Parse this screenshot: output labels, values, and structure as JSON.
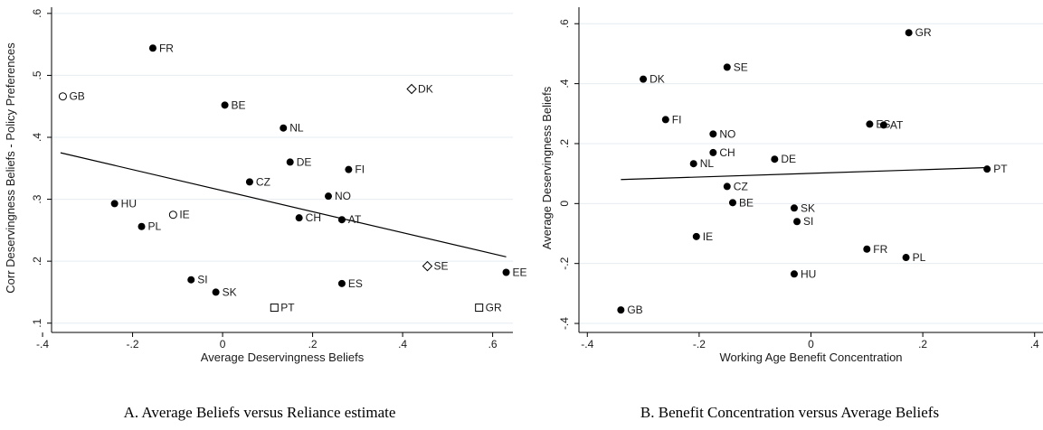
{
  "chart_data": [
    {
      "type": "scatter",
      "xlabel": "Average Deservingness Beliefs",
      "ylabel": "Corr Deservingness Beliefs - Policy Preferences",
      "caption": "A. Average Beliefs versus Reliance estimate",
      "xlim": [
        -0.38,
        0.645
      ],
      "ylim": [
        0.085,
        0.61
      ],
      "xticks": [
        -0.4,
        -0.2,
        0,
        0.2,
        0.4,
        0.6
      ],
      "xtick_labels": [
        "-.4",
        "-.2",
        "0",
        ".2",
        ".4",
        ".6"
      ],
      "yticks": [
        0.1,
        0.2,
        0.3,
        0.4,
        0.5,
        0.6
      ],
      "ytick_labels": [
        ".1",
        ".2",
        ".3",
        ".4",
        ".5",
        ".6"
      ],
      "grid": "horizontal",
      "fit_line": {
        "x": [
          -0.36,
          0.63
        ],
        "y": [
          0.375,
          0.207
        ]
      },
      "points": [
        {
          "label": "FR",
          "x": -0.155,
          "y": 0.544,
          "marker": "filled-circle"
        },
        {
          "label": "GB",
          "x": -0.355,
          "y": 0.466,
          "marker": "hollow-circle"
        },
        {
          "label": "BE",
          "x": 0.005,
          "y": 0.452,
          "marker": "filled-circle"
        },
        {
          "label": "DK",
          "x": 0.42,
          "y": 0.478,
          "marker": "hollow-diamond"
        },
        {
          "label": "NL",
          "x": 0.135,
          "y": 0.415,
          "marker": "filled-circle"
        },
        {
          "label": "DE",
          "x": 0.15,
          "y": 0.36,
          "marker": "filled-circle"
        },
        {
          "label": "FI",
          "x": 0.28,
          "y": 0.348,
          "marker": "filled-circle"
        },
        {
          "label": "CZ",
          "x": 0.06,
          "y": 0.328,
          "marker": "filled-circle"
        },
        {
          "label": "NO",
          "x": 0.235,
          "y": 0.305,
          "marker": "filled-circle"
        },
        {
          "label": "HU",
          "x": -0.24,
          "y": 0.293,
          "marker": "filled-circle"
        },
        {
          "label": "IE",
          "x": -0.11,
          "y": 0.275,
          "marker": "hollow-circle"
        },
        {
          "label": "CH",
          "x": 0.17,
          "y": 0.27,
          "marker": "filled-circle"
        },
        {
          "label": "AT",
          "x": 0.265,
          "y": 0.267,
          "marker": "filled-circle"
        },
        {
          "label": "PL",
          "x": -0.18,
          "y": 0.256,
          "marker": "filled-circle"
        },
        {
          "label": "SE",
          "x": 0.455,
          "y": 0.192,
          "marker": "hollow-diamond"
        },
        {
          "label": "EE",
          "x": 0.63,
          "y": 0.182,
          "marker": "filled-circle"
        },
        {
          "label": "SI",
          "x": -0.07,
          "y": 0.17,
          "marker": "filled-circle"
        },
        {
          "label": "ES",
          "x": 0.265,
          "y": 0.164,
          "marker": "filled-circle"
        },
        {
          "label": "SK",
          "x": -0.015,
          "y": 0.15,
          "marker": "filled-circle"
        },
        {
          "label": "PT",
          "x": 0.115,
          "y": 0.125,
          "marker": "hollow-square"
        },
        {
          "label": "GR",
          "x": 0.57,
          "y": 0.125,
          "marker": "hollow-square"
        }
      ]
    },
    {
      "type": "scatter",
      "xlabel": "Working Age Benefit Concentration",
      "ylabel": "Average Deservingness Beliefs",
      "caption": "B. Benefit Concentration versus Average Beliefs",
      "xlim": [
        -0.415,
        0.415
      ],
      "ylim": [
        -0.43,
        0.655
      ],
      "xticks": [
        -0.4,
        -0.2,
        0,
        0.2,
        0.4
      ],
      "xtick_labels": [
        "-.4",
        "-.2",
        "0",
        ".2",
        ".4"
      ],
      "yticks": [
        -0.4,
        -0.2,
        0,
        0.2,
        0.4,
        0.6
      ],
      "ytick_labels": [
        "-.4",
        "-.2",
        "0",
        ".2",
        ".4",
        ".6"
      ],
      "grid": "horizontal",
      "fit_line": {
        "x": [
          -0.34,
          0.315
        ],
        "y": [
          0.08,
          0.12
        ]
      },
      "points": [
        {
          "label": "GR",
          "x": 0.175,
          "y": 0.57,
          "marker": "filled-circle"
        },
        {
          "label": "SE",
          "x": -0.15,
          "y": 0.455,
          "marker": "filled-circle"
        },
        {
          "label": "DK",
          "x": -0.3,
          "y": 0.415,
          "marker": "filled-circle"
        },
        {
          "label": "FI",
          "x": -0.26,
          "y": 0.28,
          "marker": "filled-circle"
        },
        {
          "label": "ES",
          "x": 0.105,
          "y": 0.265,
          "marker": "filled-circle"
        },
        {
          "label": "AT",
          "x": 0.13,
          "y": 0.262,
          "marker": "filled-circle"
        },
        {
          "label": "NO",
          "x": -0.175,
          "y": 0.232,
          "marker": "filled-circle"
        },
        {
          "label": "CH",
          "x": -0.175,
          "y": 0.17,
          "marker": "filled-circle"
        },
        {
          "label": "DE",
          "x": -0.065,
          "y": 0.148,
          "marker": "filled-circle"
        },
        {
          "label": "NL",
          "x": -0.21,
          "y": 0.133,
          "marker": "filled-circle"
        },
        {
          "label": "PT",
          "x": 0.315,
          "y": 0.115,
          "marker": "filled-circle"
        },
        {
          "label": "CZ",
          "x": -0.15,
          "y": 0.057,
          "marker": "filled-circle"
        },
        {
          "label": "BE",
          "x": -0.14,
          "y": 0.003,
          "marker": "filled-circle"
        },
        {
          "label": "SK",
          "x": -0.03,
          "y": -0.015,
          "marker": "filled-circle"
        },
        {
          "label": "SI",
          "x": -0.025,
          "y": -0.06,
          "marker": "filled-circle"
        },
        {
          "label": "IE",
          "x": -0.205,
          "y": -0.11,
          "marker": "filled-circle"
        },
        {
          "label": "FR",
          "x": 0.1,
          "y": -0.152,
          "marker": "filled-circle"
        },
        {
          "label": "PL",
          "x": 0.17,
          "y": -0.18,
          "marker": "filled-circle"
        },
        {
          "label": "HU",
          "x": -0.03,
          "y": -0.235,
          "marker": "filled-circle"
        },
        {
          "label": "GB",
          "x": -0.34,
          "y": -0.355,
          "marker": "filled-circle"
        }
      ]
    }
  ]
}
